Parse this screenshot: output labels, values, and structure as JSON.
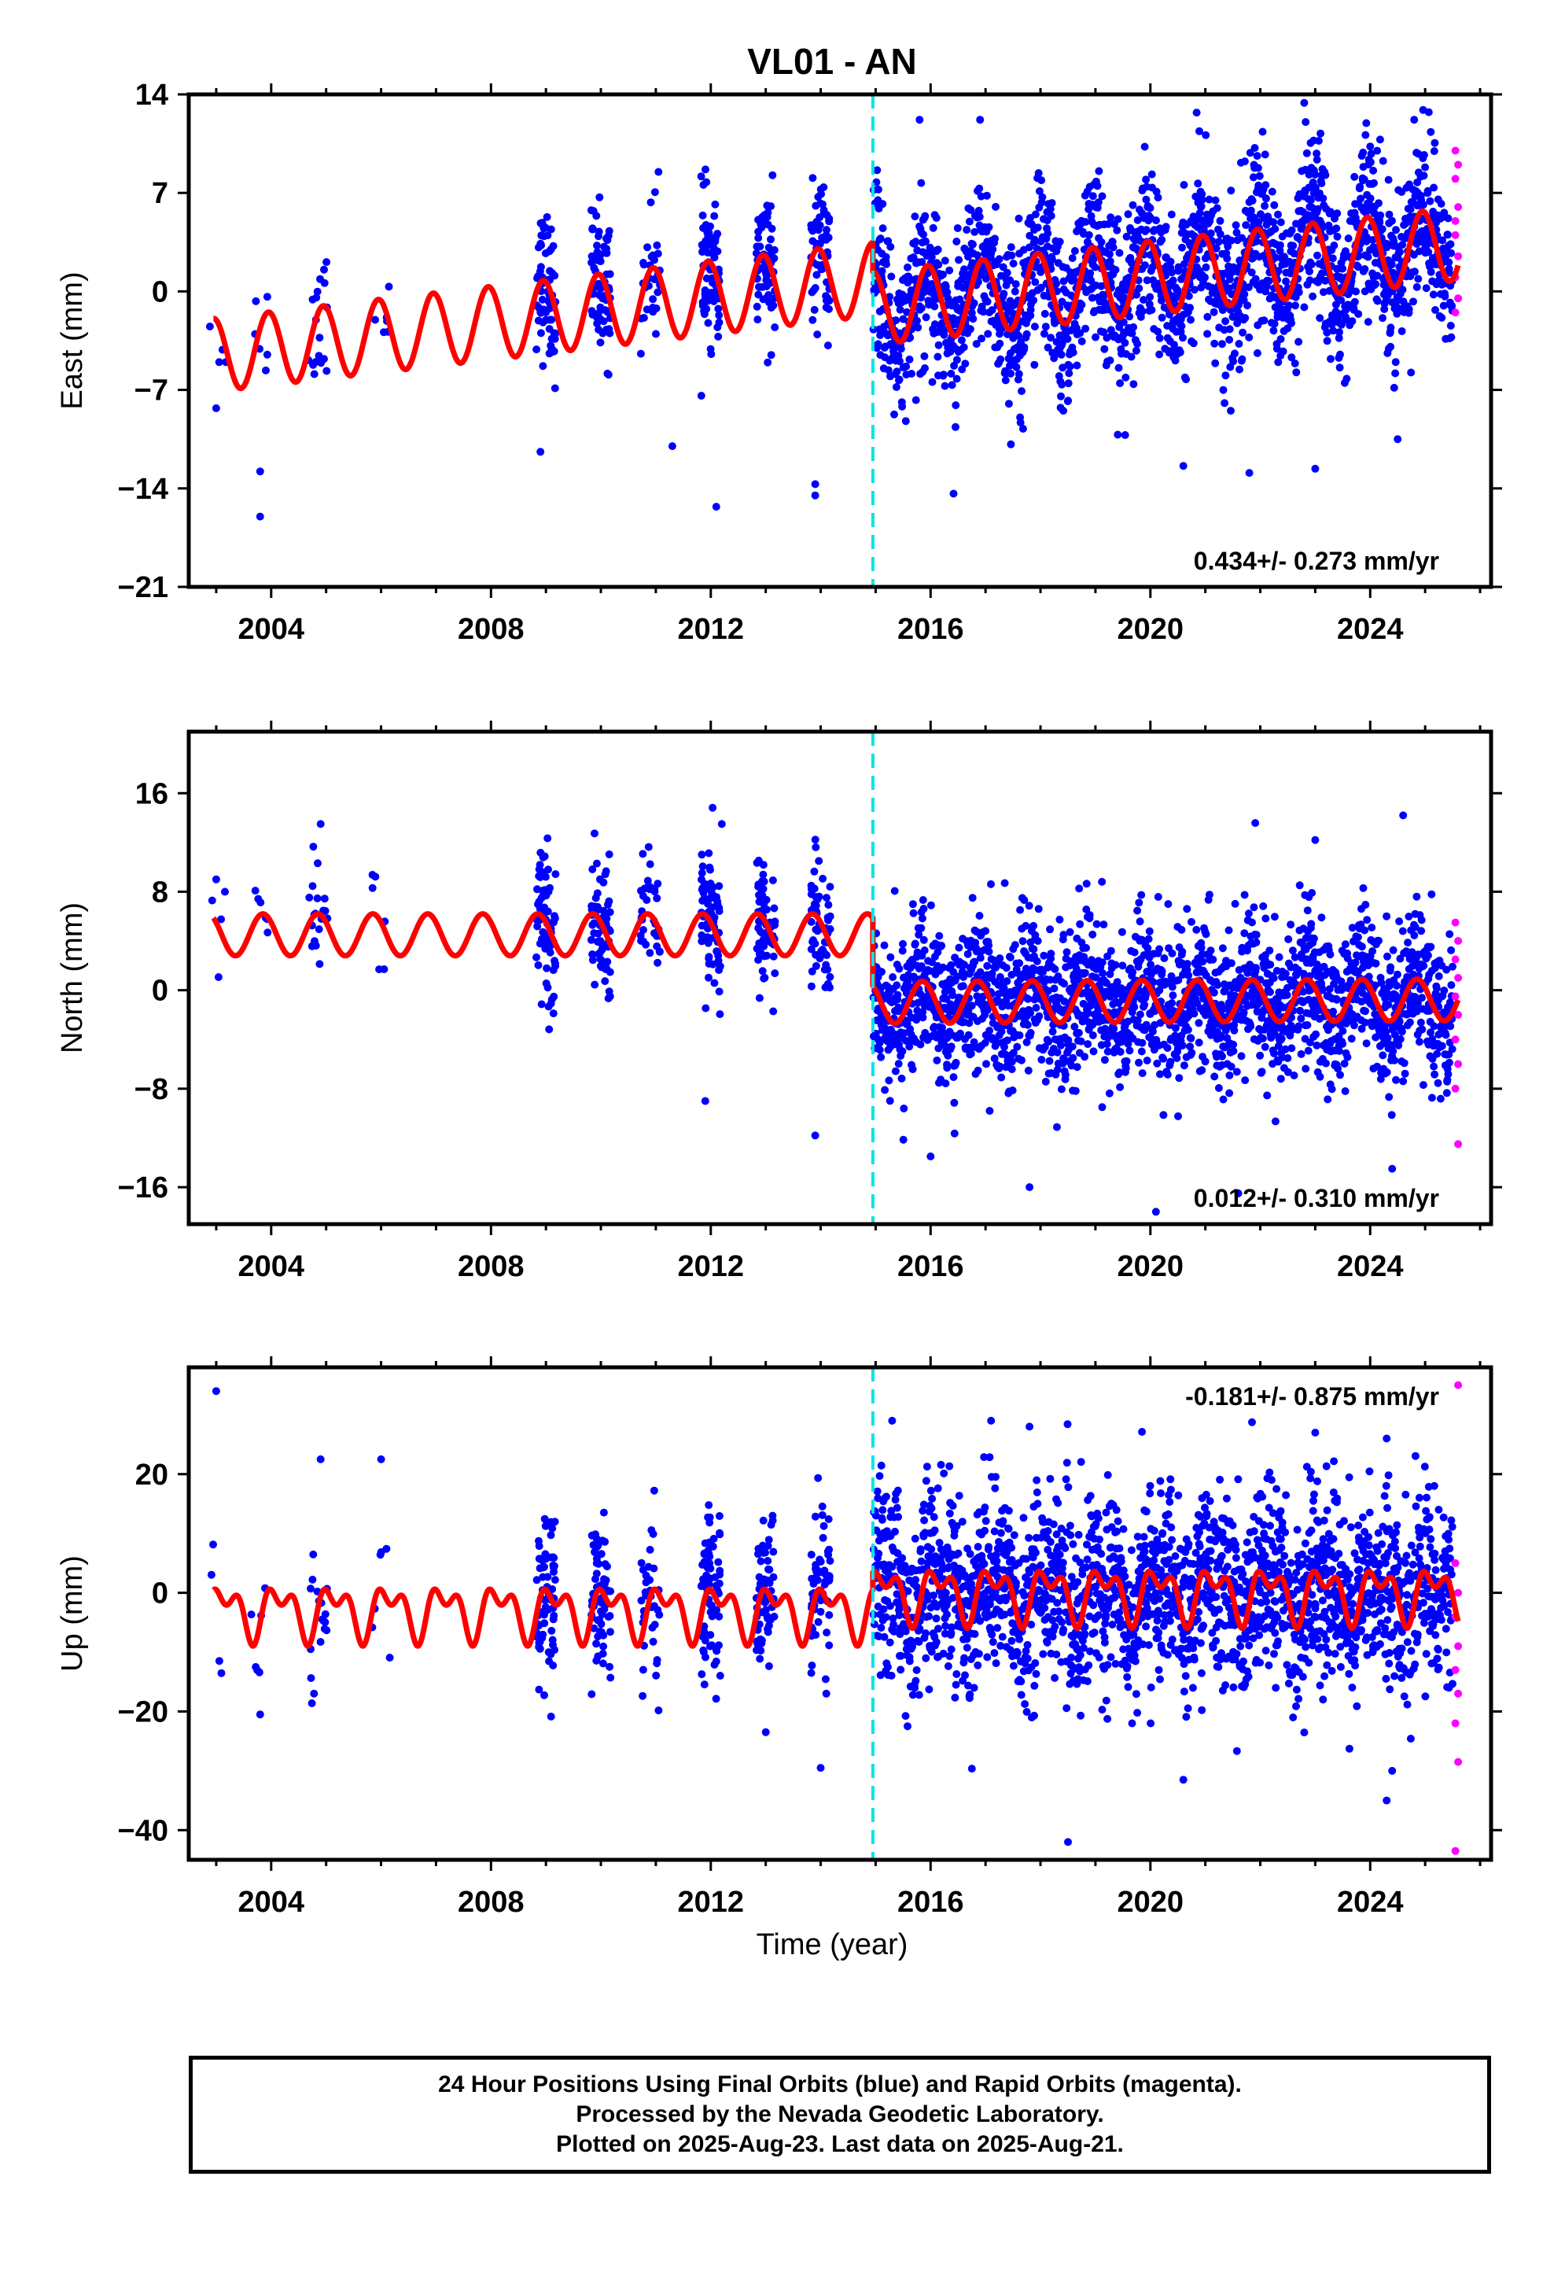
{
  "title": "VL01 - AN",
  "xlabel": "Time (year)",
  "colors": {
    "final": "#0000ff",
    "rapid": "#ff00ff",
    "model": "#ff0000",
    "event": "#00e5e5",
    "frame": "#000000"
  },
  "event_year": 2014.95,
  "caption": [
    "24 Hour Positions Using Final Orbits (blue) and Rapid Orbits (magenta).",
    "Processed by the Nevada Geodetic Laboratory.",
    "Plotted on 2025-Aug-23. Last data on 2025-Aug-21."
  ],
  "chart_data": [
    {
      "type": "scatter",
      "component": "east",
      "ylabel": "East (mm)",
      "velocity": "0.434+/- 0.273 mm/yr",
      "velocity_position": "bottom-right",
      "xlim": [
        2002.5,
        2026.2
      ],
      "ylim": [
        -21,
        14
      ],
      "xticks": [
        2004,
        2008,
        2012,
        2016,
        2020,
        2024
      ],
      "xtick_labels": [
        "2004",
        "2008",
        "2012",
        "2016",
        "2020",
        "2024"
      ],
      "yticks": [
        14,
        7,
        0,
        -7,
        -14,
        -21
      ],
      "ytick_labels": [
        "14",
        "7",
        "0",
        "−7",
        "−14",
        "−21"
      ],
      "model": {
        "pre_offset": -4.5,
        "pre_rate": 0.45,
        "post_offset": -1.2,
        "post_rate": 0.43,
        "annual_amp": 2.6,
        "annual_phase": 0.3
      },
      "scatter_sd": 2.8,
      "outliers": [
        [
          2003.0,
          -8.3
        ],
        [
          2003.8,
          -16.0
        ],
        [
          2003.8,
          -12.8
        ],
        [
          2008.9,
          -11.4
        ],
        [
          2011.3,
          -11.0
        ],
        [
          2012.1,
          -15.3
        ],
        [
          2013.9,
          -14.5
        ],
        [
          2013.9,
          -13.7
        ],
        [
          2015.8,
          12.2
        ],
        [
          2016.9,
          12.2
        ],
        [
          2021.9,
          10.2
        ],
        [
          2022.8,
          13.4
        ],
        [
          2024.8,
          12.2
        ],
        [
          2020.6,
          -12.4
        ],
        [
          2021.8,
          -12.9
        ],
        [
          2023.0,
          -12.6
        ],
        [
          2024.5,
          -10.5
        ]
      ],
      "rapid": [
        [
          2025.55,
          10.0
        ],
        [
          2025.55,
          8.0
        ],
        [
          2025.6,
          6.0
        ],
        [
          2025.55,
          4.0
        ],
        [
          2025.6,
          2.5
        ],
        [
          2025.55,
          1.0
        ],
        [
          2025.6,
          -0.5
        ],
        [
          2025.55,
          -1.5
        ],
        [
          2025.6,
          9.0
        ],
        [
          2025.55,
          5.0
        ]
      ]
    },
    {
      "type": "scatter",
      "component": "north",
      "ylabel": "North (mm)",
      "velocity": "0.012+/- 0.310 mm/yr",
      "velocity_position": "bottom-right",
      "xlim": [
        2002.5,
        2026.2
      ],
      "ylim": [
        -19,
        21
      ],
      "xticks": [
        2004,
        2008,
        2012,
        2016,
        2020,
        2024
      ],
      "xtick_labels": [
        "2004",
        "2008",
        "2012",
        "2016",
        "2020",
        "2024"
      ],
      "yticks": [
        16,
        8,
        0,
        -8,
        -16
      ],
      "ytick_labels": [
        "16",
        "8",
        "0",
        "−8",
        "−16"
      ],
      "model": {
        "pre_offset": 4.5,
        "pre_rate": 0.0,
        "post_offset": -1.0,
        "post_rate": 0.02,
        "annual_amp": 1.7,
        "annual_phase": 0.4
      },
      "scatter_sd": 3.0,
      "outliers": [
        [
          2003.0,
          9.0
        ],
        [
          2004.9,
          13.5
        ],
        [
          2012.2,
          13.5
        ],
        [
          2011.9,
          -9.0
        ],
        [
          2013.9,
          -11.8
        ],
        [
          2023.0,
          12.2
        ],
        [
          2024.6,
          14.2
        ],
        [
          2020.1,
          -18.0
        ],
        [
          2021.6,
          -16.5
        ],
        [
          2017.8,
          -16.0
        ],
        [
          2024.4,
          -14.5
        ],
        [
          2016.0,
          -13.5
        ]
      ],
      "rapid": [
        [
          2025.55,
          5.5
        ],
        [
          2025.6,
          4.0
        ],
        [
          2025.55,
          2.5
        ],
        [
          2025.6,
          1.0
        ],
        [
          2025.55,
          -0.5
        ],
        [
          2025.6,
          -2.0
        ],
        [
          2025.55,
          -4.0
        ],
        [
          2025.6,
          -6.0
        ],
        [
          2025.55,
          -8.0
        ],
        [
          2025.6,
          -12.5
        ]
      ]
    },
    {
      "type": "scatter",
      "component": "up",
      "ylabel": "Up (mm)",
      "velocity": "-0.181+/- 0.875 mm/yr",
      "velocity_position": "top-right",
      "xlim": [
        2002.5,
        2026.2
      ],
      "ylim": [
        -45,
        38
      ],
      "xticks": [
        2004,
        2008,
        2012,
        2016,
        2020,
        2024
      ],
      "xtick_labels": [
        "2004",
        "2008",
        "2012",
        "2016",
        "2020",
        "2024"
      ],
      "yticks": [
        20,
        0,
        -20,
        -40
      ],
      "ytick_labels": [
        "20",
        "0",
        "−20",
        "−40"
      ],
      "model": {
        "pre_offset": -3.0,
        "pre_rate": 0.0,
        "post_offset": 0.0,
        "post_rate": 0.0,
        "annual_amp": 3.5,
        "annual_phase": 0.1,
        "semi_amp": 2.5
      },
      "scatter_sd": 7.5,
      "outliers": [
        [
          2003.0,
          34.0
        ],
        [
          2004.9,
          22.5
        ],
        [
          2006.0,
          22.5
        ],
        [
          2003.8,
          -20.5
        ],
        [
          2014.0,
          -29.5
        ],
        [
          2013.0,
          -23.5
        ],
        [
          2015.3,
          29.0
        ],
        [
          2017.1,
          29.0
        ],
        [
          2017.8,
          28.0
        ],
        [
          2018.5,
          -42.0
        ],
        [
          2020.6,
          -31.5
        ],
        [
          2024.3,
          -35.0
        ],
        [
          2024.4,
          -30.0
        ],
        [
          2023.0,
          27.0
        ],
        [
          2024.3,
          26.0
        ]
      ],
      "rapid": [
        [
          2025.6,
          35.0
        ],
        [
          2025.55,
          5.0
        ],
        [
          2025.6,
          0.0
        ],
        [
          2025.55,
          -4.0
        ],
        [
          2025.6,
          -9.0
        ],
        [
          2025.55,
          -13.0
        ],
        [
          2025.6,
          -17.0
        ],
        [
          2025.55,
          -22.0
        ],
        [
          2025.6,
          -28.5
        ],
        [
          2025.55,
          -43.5
        ]
      ]
    }
  ]
}
